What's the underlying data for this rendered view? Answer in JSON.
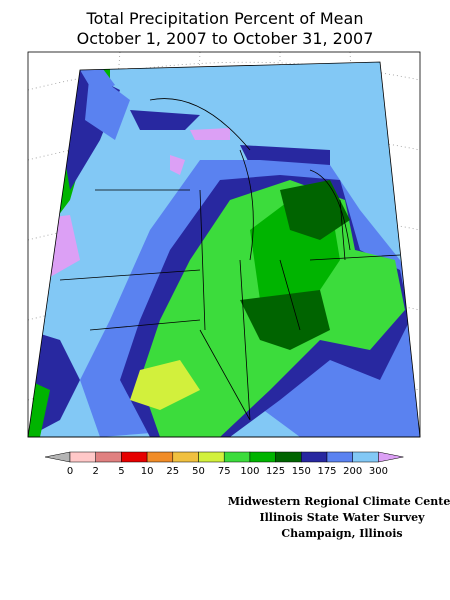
{
  "title": [
    "Total Precipitation Percent of Mean",
    "October 1, 2007 to October 31, 2007"
  ],
  "legend": {
    "labels": [
      0,
      2,
      5,
      10,
      25,
      50,
      75,
      100,
      125,
      150,
      175,
      200,
      300
    ],
    "colors": [
      "#b4b4b4",
      "#ffc8c8",
      "#e08080",
      "#e60000",
      "#f08c28",
      "#f0c040",
      "#d2f03c",
      "#3cdc3c",
      "#00b400",
      "#006400",
      "#2828a0",
      "#5a82f0",
      "#82c8f5",
      "#dca0f5"
    ]
  },
  "credits": [
    "Midwestern Regional Climate Center",
    "Illinois State Water Survey",
    "Champaign, Illinois"
  ]
}
